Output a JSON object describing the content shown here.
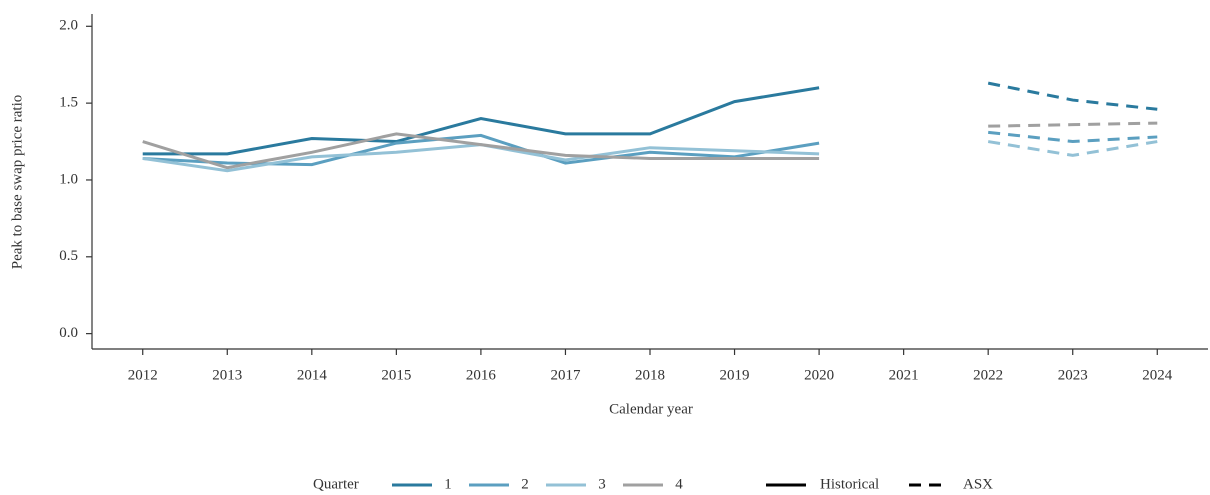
{
  "chart_data": {
    "type": "line",
    "x_label": "Calendar year",
    "y_label": "Peak to base swap price ratio",
    "x": [
      2012,
      2013,
      2014,
      2015,
      2016,
      2017,
      2018,
      2019,
      2020,
      2021,
      2022,
      2023,
      2024
    ],
    "xlim": [
      2011.4,
      2024.6
    ],
    "xticks": [
      2012,
      2013,
      2014,
      2015,
      2016,
      2017,
      2018,
      2019,
      2020,
      2021,
      2022,
      2023,
      2024
    ],
    "ylim": [
      -0.1,
      2.08
    ],
    "yticks": [
      {
        "value": 0,
        "label": "0.0"
      },
      {
        "value": 0.5,
        "label": "0.5"
      },
      {
        "value": 1,
        "label": "1.0"
      },
      {
        "value": 1.5,
        "label": "1.5"
      },
      {
        "value": 2,
        "label": "2.0"
      }
    ],
    "legend_title": "Quarter",
    "series": [
      {
        "name": "1",
        "color": "#2a7a9e",
        "values": [
          1.17,
          1.17,
          1.27,
          1.25,
          1.4,
          1.3,
          1.3,
          1.51,
          1.6,
          null,
          1.63,
          1.52,
          1.46
        ]
      },
      {
        "name": "2",
        "color": "#5b9fc0",
        "values": [
          1.14,
          1.11,
          1.1,
          1.24,
          1.29,
          1.11,
          1.18,
          1.15,
          1.24,
          null,
          1.31,
          1.25,
          1.28
        ]
      },
      {
        "name": "3",
        "color": "#93c1d6",
        "values": [
          1.14,
          1.06,
          1.15,
          1.18,
          1.23,
          1.13,
          1.21,
          1.19,
          1.17,
          null,
          1.25,
          1.16,
          1.25
        ]
      },
      {
        "name": "4",
        "color": "#a0a0a0",
        "values": [
          1.25,
          1.08,
          1.18,
          1.3,
          1.23,
          1.16,
          1.14,
          1.14,
          1.14,
          null,
          1.35,
          1.36,
          1.37
        ]
      }
    ],
    "line_styles": [
      {
        "name": "Historical",
        "dashed": false
      },
      {
        "name": "ASX",
        "dashed": true
      }
    ]
  }
}
